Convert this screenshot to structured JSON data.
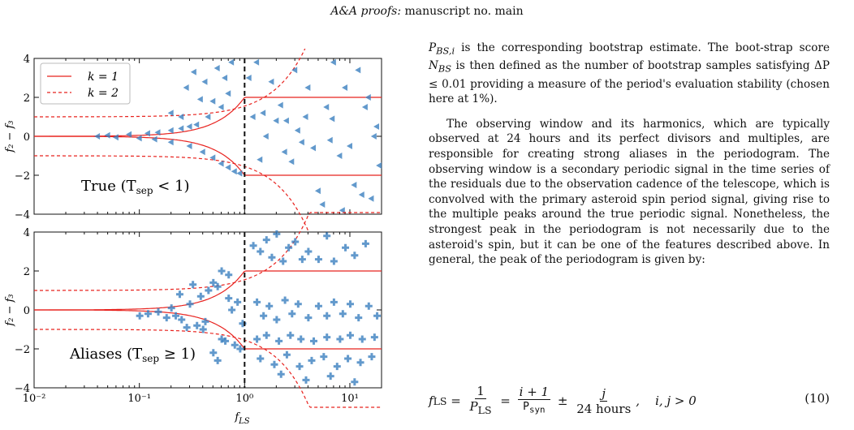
{
  "header": {
    "journal": "A&A proofs:",
    "rest": " manuscript no. main"
  },
  "figure": {
    "top_panel_label": "True (T",
    "top_panel_label_sub": "sep",
    "top_panel_label_end": " < 1)",
    "bottom_panel_label": "Aliases (T",
    "bottom_panel_label_sub": "sep",
    "bottom_panel_label_end": " ≥ 1)",
    "ylabel": "f₂ − f₃",
    "xlabel": "f",
    "xlabel_sub": "LS",
    "legend": [
      {
        "label": "k = 1",
        "style": "solid"
      },
      {
        "label": "k = 2",
        "style": "dashed"
      }
    ],
    "colors": {
      "curve": "#e8231f",
      "points": "#3b7fbf",
      "vline": "#111111"
    }
  },
  "chart_data": {
    "type": "scatter",
    "x_scale": "log",
    "xlim": [
      0.01,
      20
    ],
    "ylim": [
      -4,
      4
    ],
    "x_ticks": [
      "10⁻²",
      "10⁻¹",
      "10⁰",
      "10¹"
    ],
    "y_ticks": [
      "−4",
      "−2",
      "0",
      "2",
      "4"
    ],
    "vertical_line_x": 1,
    "series": [
      {
        "name": "k = 1",
        "style": "solid"
      },
      {
        "name": "k = 2",
        "style": "dashed"
      }
    ],
    "panels": [
      {
        "panel": "top",
        "marker": "triangle-left",
        "points": [
          [
            0.5,
            1.8
          ],
          [
            0.6,
            1.5
          ],
          [
            0.7,
            2.2
          ],
          [
            0.45,
            1.0
          ],
          [
            0.35,
            0.6
          ],
          [
            0.3,
            0.5
          ],
          [
            0.25,
            0.4
          ],
          [
            0.2,
            0.3
          ],
          [
            0.15,
            0.2
          ],
          [
            0.12,
            0.15
          ],
          [
            0.08,
            0.1
          ],
          [
            0.05,
            0.05
          ],
          [
            0.04,
            0.0
          ],
          [
            0.06,
            -0.05
          ],
          [
            0.1,
            -0.1
          ],
          [
            0.14,
            -0.15
          ],
          [
            0.2,
            -0.3
          ],
          [
            0.3,
            -0.5
          ],
          [
            0.4,
            -0.8
          ],
          [
            0.5,
            -1.1
          ],
          [
            0.6,
            -1.4
          ],
          [
            0.7,
            -1.6
          ],
          [
            0.8,
            -1.8
          ],
          [
            0.9,
            -1.9
          ],
          [
            0.28,
            2.5
          ],
          [
            0.33,
            3.3
          ],
          [
            0.75,
            3.8
          ],
          [
            0.55,
            3.5
          ],
          [
            0.42,
            2.8
          ],
          [
            0.38,
            1.9
          ],
          [
            0.65,
            3.0
          ],
          [
            0.2,
            1.2
          ],
          [
            0.25,
            1.0
          ],
          [
            1.3,
            3.8
          ],
          [
            1.5,
            1.2
          ],
          [
            1.8,
            2.8
          ],
          [
            2.2,
            1.6
          ],
          [
            2.5,
            0.8
          ],
          [
            3.0,
            3.4
          ],
          [
            3.5,
            -0.3
          ],
          [
            4.0,
            2.5
          ],
          [
            5.0,
            -2.8
          ],
          [
            6.0,
            1.5
          ],
          [
            7.0,
            3.8
          ],
          [
            8.0,
            -1.0
          ],
          [
            9.0,
            2.5
          ],
          [
            10.0,
            -0.5
          ],
          [
            12.0,
            3.4
          ],
          [
            14.0,
            1.5
          ],
          [
            16.0,
            -3.2
          ],
          [
            18.0,
            0.5
          ],
          [
            1.2,
            1.0
          ],
          [
            1.4,
            -1.2
          ],
          [
            2.0,
            0.8
          ],
          [
            2.8,
            -1.3
          ],
          [
            3.2,
            0.3
          ],
          [
            4.5,
            -0.6
          ],
          [
            5.5,
            -3.5
          ],
          [
            6.5,
            -0.2
          ],
          [
            11.0,
            -2.5
          ],
          [
            13.0,
            -3.0
          ],
          [
            15.0,
            2.0
          ],
          [
            17.0,
            0.0
          ],
          [
            19.0,
            -1.5
          ],
          [
            1.1,
            3.0
          ],
          [
            1.6,
            0.0
          ],
          [
            2.4,
            -0.8
          ],
          [
            3.8,
            1.0
          ],
          [
            6.8,
            0.9
          ],
          [
            8.5,
            -3.8
          ]
        ]
      },
      {
        "panel": "bottom",
        "marker": "plus",
        "points": [
          [
            0.1,
            -0.3
          ],
          [
            0.12,
            -0.2
          ],
          [
            0.15,
            -0.1
          ],
          [
            0.2,
            0.1
          ],
          [
            0.22,
            -0.3
          ],
          [
            0.25,
            -0.5
          ],
          [
            0.3,
            0.3
          ],
          [
            0.35,
            -0.8
          ],
          [
            0.4,
            -1.0
          ],
          [
            0.45,
            1.0
          ],
          [
            0.5,
            1.4
          ],
          [
            0.55,
            1.2
          ],
          [
            0.6,
            -1.5
          ],
          [
            0.65,
            -1.6
          ],
          [
            0.7,
            0.6
          ],
          [
            0.8,
            -1.8
          ],
          [
            0.9,
            -2.0
          ],
          [
            0.32,
            1.3
          ],
          [
            0.38,
            0.7
          ],
          [
            0.42,
            -0.6
          ],
          [
            0.28,
            -0.9
          ],
          [
            0.18,
            -0.4
          ],
          [
            0.24,
            0.8
          ],
          [
            0.6,
            2.0
          ],
          [
            0.7,
            1.8
          ],
          [
            0.5,
            -2.2
          ],
          [
            0.55,
            -2.6
          ],
          [
            0.75,
            0.0
          ],
          [
            0.85,
            0.4
          ],
          [
            0.95,
            -0.7
          ],
          [
            1.2,
            3.3
          ],
          [
            1.4,
            3.0
          ],
          [
            1.6,
            3.6
          ],
          [
            1.8,
            2.7
          ],
          [
            2.0,
            3.9
          ],
          [
            2.3,
            2.5
          ],
          [
            2.6,
            3.2
          ],
          [
            3.0,
            3.5
          ],
          [
            3.5,
            2.6
          ],
          [
            4.0,
            3.0
          ],
          [
            5.0,
            2.6
          ],
          [
            6.0,
            3.8
          ],
          [
            7.0,
            2.5
          ],
          [
            9.0,
            3.2
          ],
          [
            11.0,
            2.8
          ],
          [
            14.0,
            3.4
          ],
          [
            1.3,
            0.4
          ],
          [
            1.5,
            -0.3
          ],
          [
            1.7,
            0.2
          ],
          [
            2.0,
            -0.5
          ],
          [
            2.4,
            0.5
          ],
          [
            2.8,
            -0.2
          ],
          [
            3.2,
            0.3
          ],
          [
            4.0,
            -0.4
          ],
          [
            5.0,
            0.2
          ],
          [
            6.0,
            -0.3
          ],
          [
            7.0,
            0.4
          ],
          [
            8.5,
            -0.2
          ],
          [
            10.0,
            0.3
          ],
          [
            12.0,
            -0.4
          ],
          [
            15.0,
            0.2
          ],
          [
            18.0,
            -0.3
          ],
          [
            1.3,
            -1.5
          ],
          [
            1.6,
            -1.3
          ],
          [
            2.1,
            -1.6
          ],
          [
            2.7,
            -1.3
          ],
          [
            3.4,
            -1.5
          ],
          [
            4.5,
            -1.6
          ],
          [
            6.0,
            -1.4
          ],
          [
            8.0,
            -1.5
          ],
          [
            10.0,
            -1.3
          ],
          [
            13.0,
            -1.5
          ],
          [
            17.0,
            -1.4
          ],
          [
            1.4,
            -2.5
          ],
          [
            1.9,
            -2.8
          ],
          [
            2.5,
            -2.3
          ],
          [
            3.3,
            -2.9
          ],
          [
            4.3,
            -2.6
          ],
          [
            5.6,
            -2.4
          ],
          [
            7.5,
            -2.9
          ],
          [
            9.5,
            -2.5
          ],
          [
            12.5,
            -2.7
          ],
          [
            16.0,
            -2.4
          ],
          [
            2.2,
            -3.3
          ],
          [
            3.8,
            -3.6
          ],
          [
            6.5,
            -3.4
          ],
          [
            11.0,
            -3.7
          ]
        ]
      }
    ]
  },
  "body": {
    "p1_a": "P",
    "p1_a_sub": "BS,i",
    "p1_b": " is the corresponding bootstrap estimate. The boot-strap score ",
    "p1_c": "N",
    "p1_c_sub": "BS",
    "p1_d": " is then defined as the number of bootstrap samples satisfying ΔP ≤ 0.01 providing a measure of the period's evaluation stability (chosen here at 1%).",
    "p2": "The observing window and its harmonics, which are typically observed at 24 hours and its perfect divisors and multiples, are responsible for creating strong aliases in the periodogram. The observing window is a secondary periodic signal in the time series of the residuals due to the observation cadence of the telescope, which is convolved with the primary asteroid spin period signal, giving rise to the multiple peaks around the true periodic signal. Nonetheless, the strongest peak in the periodogram is not necessarily due to the asteroid's spin, but it can be one of the features described above. In general, the peak of the periodogram is given by:"
  },
  "equation": {
    "lhs": "f",
    "lhs_sub": "LS",
    "eq1": " = ",
    "frac1_num": "1",
    "frac1_den": "P",
    "frac1_den_sub": "LS",
    "eq2": " = ",
    "frac2_num": "i + 1",
    "frac2_den": "P",
    "frac2_den_sub": "syn",
    "pm": " ± ",
    "frac3_num": "j",
    "frac3_den": "24 hours",
    "tail": ",    i, j > 0",
    "number": "(10)"
  }
}
